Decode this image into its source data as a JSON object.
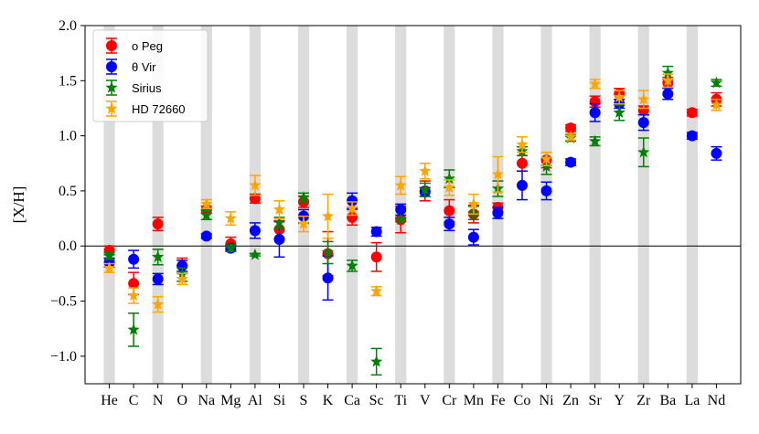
{
  "chart_data": {
    "type": "scatter",
    "title": "",
    "xlabel": "",
    "ylabel": "[X/H]",
    "categories": [
      "He",
      "C",
      "N",
      "O",
      "Na",
      "Mg",
      "Al",
      "Si",
      "S",
      "K",
      "Ca",
      "Sc",
      "Ti",
      "V",
      "Cr",
      "Mn",
      "Fe",
      "Co",
      "Ni",
      "Zn",
      "Sr",
      "Y",
      "Zr",
      "Ba",
      "La",
      "Nd"
    ],
    "shaded_categories": [
      "He",
      "N",
      "Na",
      "Al",
      "S",
      "Ca",
      "Ti",
      "Cr",
      "Fe",
      "Ni",
      "Sr",
      "Zr",
      "La"
    ],
    "ylim": [
      -1.25,
      2.0
    ],
    "yticks": [
      -1.0,
      -0.5,
      0.0,
      0.5,
      1.0,
      1.5,
      2.0
    ],
    "ytick_labels": [
      "−1.0",
      "−0.5",
      "0.0",
      "0.5",
      "1.0",
      "1.5",
      "2.0"
    ],
    "zero_line": true,
    "legend_position": "top-left",
    "series": [
      {
        "name": "o Peg",
        "color": "#ff0000",
        "marker": "circle",
        "offset": 0,
        "values": [
          -0.04,
          -0.34,
          0.2,
          -0.18,
          0.33,
          0.02,
          0.43,
          0.15,
          0.4,
          -0.07,
          0.26,
          -0.1,
          0.24,
          0.5,
          0.32,
          0.29,
          0.35,
          0.75,
          0.78,
          1.07,
          1.31,
          1.38,
          1.23,
          1.48,
          1.21,
          1.33
        ],
        "errors": [
          0.04,
          0.1,
          0.06,
          0.07,
          0.03,
          0.06,
          0.04,
          0.08,
          0.05,
          0.2,
          0.07,
          0.13,
          0.12,
          0.09,
          0.1,
          0.08,
          0.04,
          0.07,
          0.07,
          0.03,
          0.05,
          0.05,
          0.04,
          0.05,
          0.03,
          0.06
        ]
      },
      {
        "name": "θ Vir",
        "color": "#0000ff",
        "marker": "circle",
        "offset": 0,
        "values": [
          -0.15,
          -0.12,
          -0.3,
          -0.18,
          0.09,
          -0.02,
          0.14,
          0.06,
          0.27,
          -0.29,
          0.41,
          0.13,
          0.33,
          0.49,
          0.2,
          0.08,
          0.3,
          0.55,
          0.5,
          0.76,
          1.21,
          1.29,
          1.12,
          1.38,
          1.0,
          0.84
        ],
        "errors": [
          0.04,
          0.08,
          0.05,
          0.05,
          0.02,
          0.03,
          0.07,
          0.16,
          0.06,
          0.2,
          0.07,
          0.04,
          0.05,
          0.04,
          0.06,
          0.07,
          0.05,
          0.13,
          0.08,
          0.03,
          0.08,
          0.04,
          0.07,
          0.05,
          0.03,
          0.06
        ]
      },
      {
        "name": "Sirius",
        "color": "#008000",
        "marker": "star",
        "offset": 0,
        "values": [
          -0.09,
          -0.76,
          -0.1,
          -0.26,
          0.28,
          -0.02,
          -0.08,
          0.21,
          0.44,
          -0.06,
          -0.18,
          -1.05,
          0.24,
          0.51,
          0.61,
          0.3,
          0.52,
          0.86,
          0.72,
          0.98,
          0.95,
          1.21,
          0.85,
          1.57,
          null,
          1.48
        ],
        "errors": [
          0.03,
          0.15,
          0.07,
          0.06,
          0.04,
          0.03,
          0.01,
          0.05,
          0.04,
          0.1,
          0.05,
          0.12,
          0.02,
          0.06,
          0.08,
          0.06,
          0.07,
          0.04,
          0.07,
          0.03,
          0.04,
          0.07,
          0.13,
          0.06,
          null,
          0.03
        ]
      },
      {
        "name": "HD 72660",
        "color": "#ffa500",
        "marker": "star",
        "offset": 0,
        "values": [
          -0.2,
          -0.45,
          -0.53,
          -0.3,
          0.38,
          0.25,
          0.55,
          0.33,
          0.2,
          0.27,
          0.34,
          -0.41,
          0.55,
          0.68,
          0.53,
          0.38,
          0.65,
          0.92,
          0.79,
          0.99,
          1.47,
          1.35,
          1.33,
          1.5,
          null,
          1.28
        ],
        "errors": [
          0.04,
          0.07,
          0.07,
          0.05,
          0.04,
          0.06,
          0.09,
          0.08,
          0.07,
          0.2,
          0.06,
          0.04,
          0.08,
          0.07,
          0.07,
          0.09,
          0.16,
          0.07,
          0.06,
          0.03,
          0.04,
          0.06,
          0.08,
          0.06,
          null,
          0.05
        ]
      }
    ]
  }
}
